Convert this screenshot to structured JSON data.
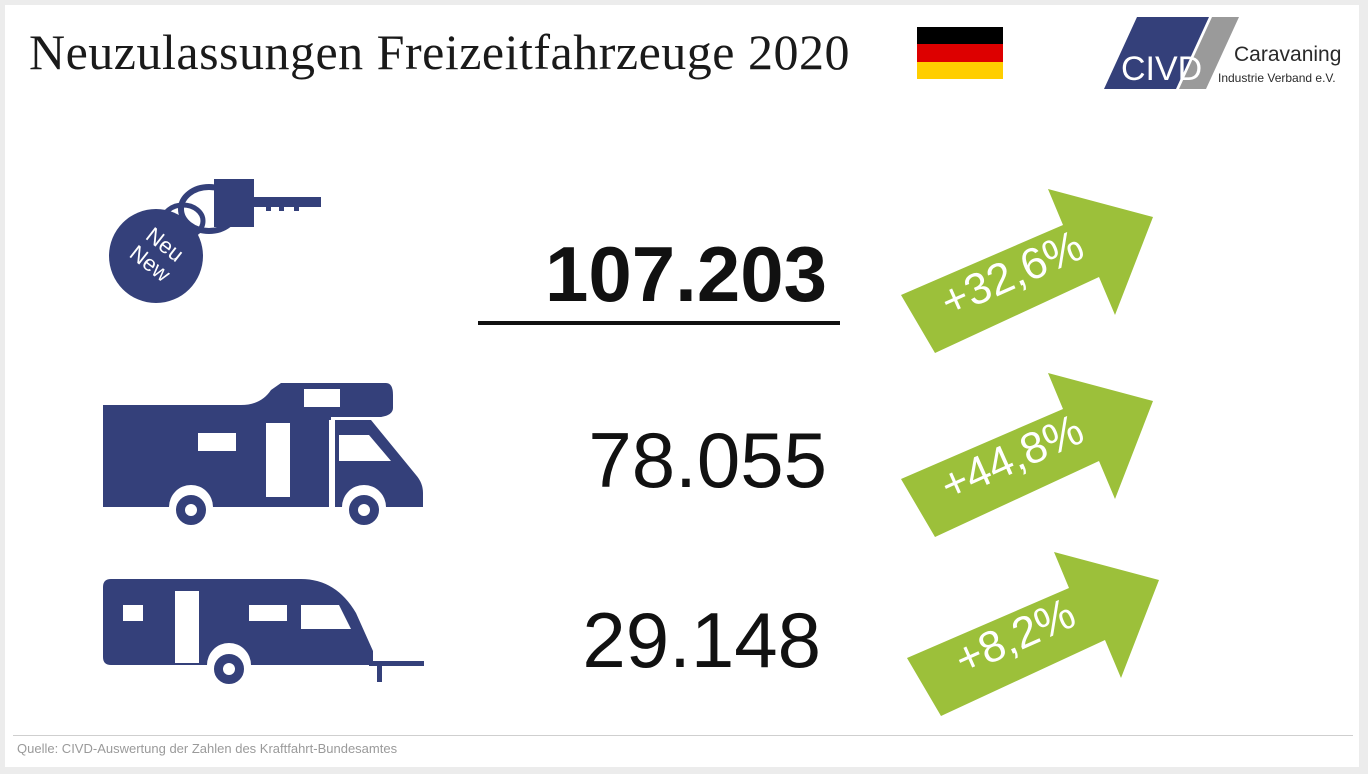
{
  "header": {
    "title": "Neuzulassungen Freizeitfahrzeuge 2020"
  },
  "flag": {
    "colors": [
      "#000000",
      "#dd0000",
      "#ffce00"
    ]
  },
  "logo": {
    "mark": "CIVD",
    "name": "Caravaning",
    "subtitle": "Industrie Verband e.V."
  },
  "tag": {
    "line1": "Neu",
    "line2": "New"
  },
  "rows": [
    {
      "icon": "key-tag-icon",
      "value": "107.203",
      "change": "+32,6%"
    },
    {
      "icon": "motorhome-icon",
      "value": "78.055",
      "change": "+44,8%"
    },
    {
      "icon": "caravan-icon",
      "value": "29.148",
      "change": "+8,2%"
    }
  ],
  "footer": {
    "source": "Quelle:  CIVD-Auswertung  der Zahlen des Kraftfahrt-Bundesamtes"
  },
  "colors": {
    "navy": "#34407a",
    "green": "#9cc03a",
    "text": "#111111"
  }
}
